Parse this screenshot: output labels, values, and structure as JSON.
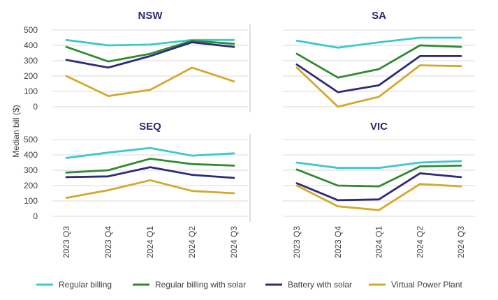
{
  "chart_data": {
    "type": "line",
    "ylabel": "Median bill ($)",
    "x": [
      "2023 Q3",
      "2023 Q4",
      "2024 Q1",
      "2024 Q2",
      "2024 Q3"
    ],
    "yticks": [
      0,
      100,
      200,
      300,
      400,
      500
    ],
    "ylim": [
      0,
      500
    ],
    "grid": true,
    "legend_position": "bottom",
    "series_meta": [
      {
        "name": "Regular billing",
        "color": "#3cc9c9"
      },
      {
        "name": "Regular billing with solar",
        "color": "#2e8b2e"
      },
      {
        "name": "Battery with solar",
        "color": "#2e2a7a"
      },
      {
        "name": "Virtual Power Plant",
        "color": "#d4a82a"
      }
    ],
    "panels": [
      {
        "title": "NSW",
        "series": [
          {
            "name": "Regular billing",
            "values": [
              435,
              400,
              405,
              435,
              435
            ]
          },
          {
            "name": "Regular billing with solar",
            "values": [
              390,
              295,
              345,
              430,
              410
            ]
          },
          {
            "name": "Battery with solar",
            "values": [
              305,
              255,
              330,
              420,
              390
            ]
          },
          {
            "name": "Virtual Power Plant",
            "values": [
              200,
              70,
              110,
              255,
              165
            ]
          }
        ]
      },
      {
        "title": "SA",
        "series": [
          {
            "name": "Regular billing",
            "values": [
              430,
              385,
              420,
              450,
              450
            ]
          },
          {
            "name": "Regular billing with solar",
            "values": [
              345,
              190,
              245,
              400,
              390
            ]
          },
          {
            "name": "Battery with solar",
            "values": [
              275,
              95,
              140,
              330,
              330
            ]
          },
          {
            "name": "Virtual Power Plant",
            "values": [
              255,
              0,
              65,
              270,
              265
            ]
          }
        ]
      },
      {
        "title": "SEQ",
        "series": [
          {
            "name": "Regular billing",
            "values": [
              380,
              415,
              445,
              395,
              410
            ]
          },
          {
            "name": "Regular billing with solar",
            "values": [
              285,
              300,
              375,
              340,
              330
            ]
          },
          {
            "name": "Battery with solar",
            "values": [
              255,
              260,
              320,
              270,
              250
            ]
          },
          {
            "name": "Virtual Power Plant",
            "values": [
              120,
              170,
              235,
              165,
              150
            ]
          }
        ]
      },
      {
        "title": "VIC",
        "series": [
          {
            "name": "Regular billing",
            "values": [
              350,
              315,
              315,
              350,
              360
            ]
          },
          {
            "name": "Regular billing with solar",
            "values": [
              305,
              200,
              195,
              325,
              330
            ]
          },
          {
            "name": "Battery with solar",
            "values": [
              215,
              105,
              110,
              280,
              255
            ]
          },
          {
            "name": "Virtual Power Plant",
            "values": [
              200,
              65,
              40,
              210,
              195
            ]
          }
        ]
      }
    ]
  }
}
